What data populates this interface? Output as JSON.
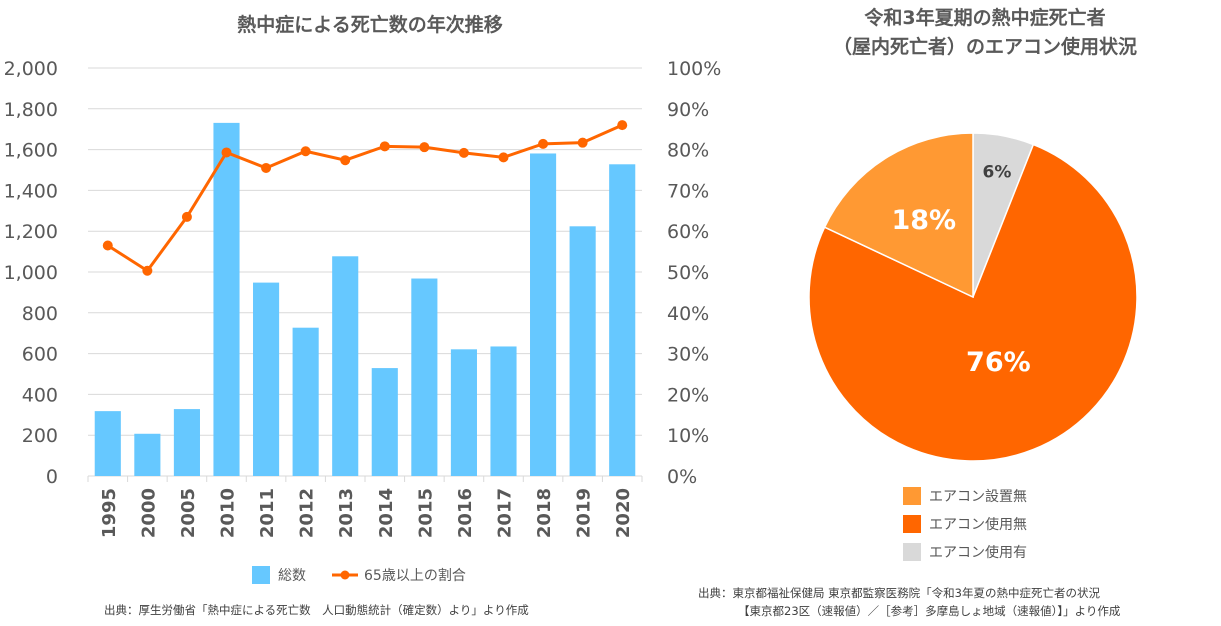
{
  "left_chart": {
    "title": "熱中症による死亡数の年次推移",
    "legend": {
      "bar_label": "総数",
      "line_label": "65歳以上の割合"
    },
    "source": "出典：厚生労働省「熱中症による死亡数　人口動態統計（確定数）より」より作成"
  },
  "right_chart": {
    "title_line1": "令和3年夏期の熱中症死亡者",
    "title_line2": "（屋内死亡者）のエアコン使用状況",
    "source_line1": "出典：東京都福祉保健局 東京都監察医務院「令和3年夏の熱中症死亡者の状況",
    "source_line2": "【東京都23区（速報値）／［参考］多摩島しょ地域（速報値）】」より作成"
  },
  "chart_data": [
    {
      "type": "bar",
      "title": "熱中症による死亡数の年次推移",
      "categories": [
        "1995",
        "2000",
        "2005",
        "2010",
        "2011",
        "2012",
        "2013",
        "2014",
        "2015",
        "2016",
        "2017",
        "2018",
        "2019",
        "2020"
      ],
      "series": [
        {
          "name": "総数",
          "type": "bar",
          "axis": "left",
          "color": "#66C8FF",
          "values": [
            318,
            207,
            328,
            1731,
            948,
            727,
            1077,
            529,
            968,
            621,
            635,
            1581,
            1224,
            1528
          ]
        },
        {
          "name": "65歳以上の割合",
          "type": "line",
          "axis": "right",
          "color": "#FF6600",
          "values": [
            56.5,
            50.3,
            63.5,
            79.3,
            75.5,
            79.6,
            77.4,
            80.8,
            80.6,
            79.2,
            78.1,
            81.4,
            81.7,
            86.0
          ]
        }
      ],
      "ylim_left": [
        0,
        2000
      ],
      "yticks_left": [
        "0",
        "200",
        "400",
        "600",
        "800",
        "1,000",
        "1,200",
        "1,400",
        "1,600",
        "1,800",
        "2,000"
      ],
      "ylim_right": [
        0,
        100
      ],
      "yticks_right": [
        "0%",
        "10%",
        "20%",
        "30%",
        "40%",
        "50%",
        "60%",
        "70%",
        "80%",
        "90%",
        "100%"
      ],
      "grid": true,
      "legend_position": "bottom",
      "xlabel": "",
      "ylabel": ""
    },
    {
      "type": "pie",
      "title": "令和3年夏期の熱中症死亡者（屋内死亡者）のエアコン使用状況",
      "start": "top-clockwise",
      "slices": [
        {
          "label": "エアコン使用有",
          "value": 6,
          "display": "6%",
          "color": "#D9D9D9",
          "label_color": "#404040"
        },
        {
          "label": "エアコン使用無",
          "value": 76,
          "display": "76%",
          "color": "#FF6600",
          "label_color": "#FFFFFF"
        },
        {
          "label": "エアコン設置無",
          "value": 18,
          "display": "18%",
          "color": "#FF9933",
          "label_color": "#FFFFFF"
        }
      ],
      "legend": [
        "エアコン設置無",
        "エアコン使用無",
        "エアコン使用有"
      ],
      "legend_colors": [
        "#FF9933",
        "#FF6600",
        "#D9D9D9"
      ],
      "legend_position": "bottom"
    }
  ]
}
